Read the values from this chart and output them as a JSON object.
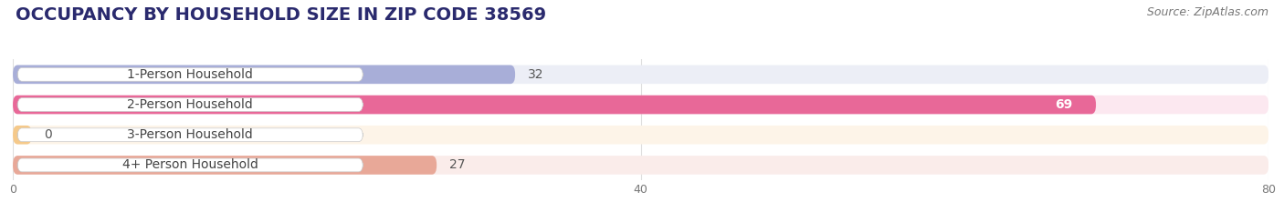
{
  "title": "OCCUPANCY BY HOUSEHOLD SIZE IN ZIP CODE 38569",
  "source": "Source: ZipAtlas.com",
  "categories": [
    "1-Person Household",
    "2-Person Household",
    "3-Person Household",
    "4+ Person Household"
  ],
  "values": [
    32,
    69,
    0,
    27
  ],
  "bar_colors": [
    "#a8aed8",
    "#e86898",
    "#f5c98a",
    "#e8a898"
  ],
  "bar_bg_colors": [
    "#eceef6",
    "#fce8f0",
    "#fdf4e8",
    "#faecea"
  ],
  "label_text_color": "#444444",
  "value_colors": [
    "#555555",
    "#ffffff",
    "#555555",
    "#555555"
  ],
  "xlim": [
    0,
    80
  ],
  "xticks": [
    0,
    40,
    80
  ],
  "title_fontsize": 14,
  "title_color": "#2a2a6e",
  "source_fontsize": 9,
  "label_fontsize": 10,
  "value_fontsize": 10,
  "bar_height": 0.62,
  "background_color": "#ffffff",
  "grid_color": "#dddddd"
}
